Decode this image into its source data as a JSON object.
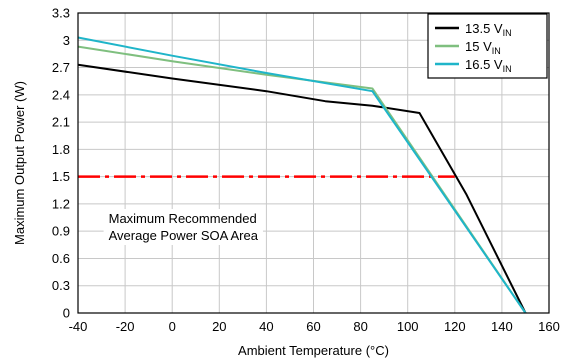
{
  "chart_data": {
    "type": "line",
    "xlabel": "Ambient Temperature (°C)",
    "ylabel": "Maximum Output Power (W)",
    "xlim": [
      -40,
      160
    ],
    "ylim": [
      0,
      3.3
    ],
    "xticks": [
      -40,
      -20,
      0,
      20,
      40,
      60,
      80,
      100,
      120,
      140,
      160
    ],
    "yticks": [
      0,
      0.3,
      0.6,
      0.9,
      1.2,
      1.5,
      1.8,
      2.1,
      2.4,
      2.7,
      3,
      3.3
    ],
    "grid": true,
    "legend_position": "top-right",
    "series": [
      {
        "name": "13.5 V",
        "name_sub": "IN",
        "color": "#000000",
        "x": [
          -40,
          0,
          40,
          65,
          85,
          105,
          125,
          150
        ],
        "y": [
          2.73,
          2.58,
          2.44,
          2.33,
          2.28,
          2.2,
          1.3,
          0
        ]
      },
      {
        "name": "15 V",
        "name_sub": "IN",
        "color": "#7fbf7f",
        "x": [
          -40,
          0,
          40,
          85,
          150
        ],
        "y": [
          2.93,
          2.77,
          2.62,
          2.47,
          0
        ]
      },
      {
        "name": "16.5 V",
        "name_sub": "IN",
        "color": "#1fb5c9",
        "x": [
          -40,
          0,
          40,
          85,
          150
        ],
        "y": [
          3.03,
          2.83,
          2.64,
          2.44,
          0
        ]
      }
    ],
    "reference_line": {
      "y": 1.5,
      "x": [
        -40,
        120
      ],
      "color": "#ff0000"
    },
    "annotation": [
      "Maximum Recommended",
      "Average Power SOA Area"
    ]
  }
}
